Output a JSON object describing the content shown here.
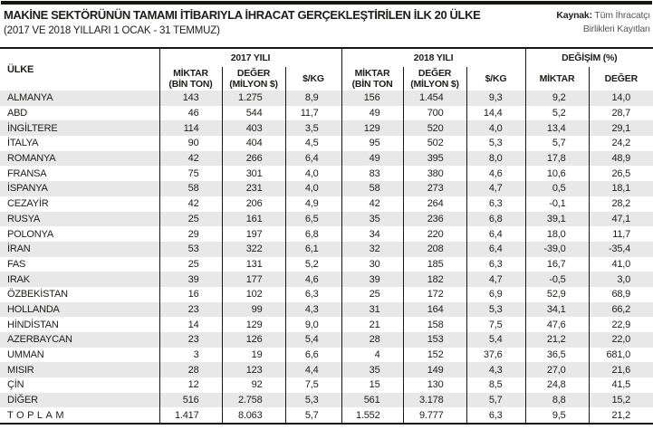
{
  "header": {
    "title": "MAKİNE SEKTÖRÜNÜN TAMAMI İTİBARIYLA İHRACAT GERÇEKLEŞTİRİLEN İLK 20 ÜLKE",
    "subtitle": "(2017 VE 2018 YILLARI 1 OCAK - 31 TEMMUZ)",
    "source_label": "Kaynak:",
    "source_line1": " Tüm İhracatçı",
    "source_line2": "Birlikleri Kayıtları"
  },
  "colors": {
    "rule_black": "#161615",
    "text": "#1d1d1b",
    "stripe_gray": "#e8e8e8",
    "source_gray": "#55565f"
  },
  "chart_data": {
    "type": "table",
    "title": "MAKİNE SEKTÖRÜNÜN TAMAMI İTİBARIYLA İHRACAT GERÇEKLEŞTİRİLEN İLK 20 ÜLKE",
    "subtitle": "(2017 VE 2018 YILLARI 1 OCAK - 31 TEMMUZ)",
    "source": "Kaynak: Tüm İhracatçı Birlikleri Kayıtları",
    "column_groups": [
      {
        "label": "2017 YILI",
        "span": 3
      },
      {
        "label": "2018 YILI",
        "span": 3
      },
      {
        "label": "DEĞİŞİM (%)",
        "span": 2
      }
    ],
    "columns": [
      "ÜLKE",
      "MİKTAR\n(BİN TON)",
      "DEĞER\n(MİLYON $)",
      "$/KG",
      "MİKTAR\n(BİN TON",
      "DEĞER\n(MİLYON $)",
      "$/KG",
      "MİKTAR",
      "DEĞER"
    ],
    "rows": [
      [
        "ALMANYA",
        "143",
        "1.275",
        "8,9",
        "156",
        "1.454",
        "9,3",
        "9,2",
        "14,0"
      ],
      [
        "ABD",
        "46",
        "544",
        "11,7",
        "49",
        "700",
        "14,4",
        "5,2",
        "28,7"
      ],
      [
        "İNGİLTERE",
        "114",
        "403",
        "3,5",
        "129",
        "520",
        "4,0",
        "13,4",
        "29,1"
      ],
      [
        "İTALYA",
        "90",
        "404",
        "4,5",
        "95",
        "502",
        "5,3",
        "5,7",
        "24,2"
      ],
      [
        "ROMANYA",
        "42",
        "266",
        "6,4",
        "49",
        "395",
        "8,0",
        "17,8",
        "48,9"
      ],
      [
        "FRANSA",
        "75",
        "301",
        "4,0",
        "83",
        "380",
        "4,6",
        "10,6",
        "26,5"
      ],
      [
        "İSPANYA",
        "58",
        "231",
        "4,0",
        "58",
        "273",
        "4,7",
        "0,5",
        "18,1"
      ],
      [
        "CEZAYİR",
        "42",
        "206",
        "4,9",
        "42",
        "264",
        "6,3",
        "-0,1",
        "28,2"
      ],
      [
        "RUSYA",
        "25",
        "161",
        "6,5",
        "35",
        "236",
        "6,8",
        "39,1",
        "47,1"
      ],
      [
        "POLONYA",
        "29",
        "197",
        "6,8",
        "34",
        "220",
        "6,4",
        "18,0",
        "11,7"
      ],
      [
        "İRAN",
        "53",
        "322",
        "6,1",
        "32",
        "208",
        "6,4",
        "-39,0",
        "-35,4"
      ],
      [
        "FAS",
        "25",
        "131",
        "5,2",
        "30",
        "185",
        "6,3",
        "16,7",
        "41,0"
      ],
      [
        "IRAK",
        "39",
        "177",
        "4,6",
        "39",
        "182",
        "4,7",
        "-0,5",
        "3,0"
      ],
      [
        "ÖZBEKİSTAN",
        "16",
        "102",
        "6,3",
        "25",
        "172",
        "6,9",
        "52,9",
        "68,9"
      ],
      [
        "HOLLANDA",
        "23",
        "99",
        "4,3",
        "31",
        "164",
        "5,3",
        "34,1",
        "66,2"
      ],
      [
        "HİNDİSTAN",
        "14",
        "129",
        "9,0",
        "21",
        "158",
        "7,5",
        "47,6",
        "22,9"
      ],
      [
        "AZERBAYCAN",
        "23",
        "126",
        "5,4",
        "28",
        "153",
        "5,4",
        "21,2",
        "22,0"
      ],
      [
        "UMMAN",
        "3",
        "19",
        "6,6",
        "4",
        "152",
        "37,6",
        "36,5",
        "681,0"
      ],
      [
        "MISIR",
        "28",
        "123",
        "4,4",
        "35",
        "149",
        "4,3",
        "27,0",
        "21,6"
      ],
      [
        "ÇİN",
        "12",
        "92",
        "7,5",
        "15",
        "130",
        "8,5",
        "24,8",
        "41,5"
      ],
      [
        "DİĞER",
        "516",
        "2.758",
        "5,3",
        "561",
        "3.178",
        "5,7",
        "8,8",
        "15,2"
      ],
      [
        "TOPLAM",
        "1.417",
        "8.063",
        "5,7",
        "1.552",
        "9.777",
        "6,3",
        "9,5",
        "21,2"
      ]
    ]
  }
}
